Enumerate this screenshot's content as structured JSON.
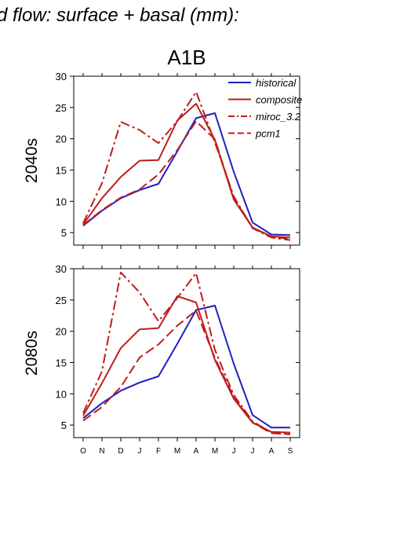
{
  "figure": {
    "title": "d flow: surface + basal (mm):",
    "scenario": "A1B"
  },
  "colors": {
    "historical": "#1f1fbf",
    "scenario": "#c01c1c"
  },
  "chart_data": [
    {
      "type": "line",
      "panel_label": "2040s",
      "categories": [
        "O",
        "N",
        "D",
        "J",
        "F",
        "M",
        "A",
        "M",
        "J",
        "J",
        "A",
        "S"
      ],
      "ylim": [
        3,
        30
      ],
      "yticks": [
        5,
        10,
        15,
        20,
        25,
        30
      ],
      "grid": false,
      "legend_placement": "top-right",
      "series": [
        {
          "name": "historical",
          "style": "solid",
          "color": "#1f1fbf",
          "values": [
            6.1,
            8.5,
            10.5,
            11.8,
            12.8,
            18.0,
            23.3,
            24.1,
            14.7,
            6.6,
            4.7,
            4.6
          ]
        },
        {
          "name": "composite",
          "style": "solid",
          "color": "#c01c1c",
          "values": [
            6.3,
            10.5,
            13.9,
            16.5,
            16.6,
            22.9,
            25.6,
            19.8,
            10.3,
            5.8,
            4.4,
            4.2
          ]
        },
        {
          "name": "miroc_3.2",
          "style": "dashdot",
          "color": "#c01c1c",
          "values": [
            6.5,
            12.9,
            22.7,
            21.4,
            19.3,
            22.8,
            27.5,
            19.4,
            10.8,
            5.7,
            4.2,
            3.8
          ]
        },
        {
          "name": "pcm1",
          "style": "dash",
          "color": "#c01c1c",
          "values": [
            6.2,
            8.6,
            10.6,
            11.9,
            14.3,
            18.2,
            22.8,
            19.9,
            10.5,
            5.8,
            4.3,
            4.0
          ]
        }
      ]
    },
    {
      "type": "line",
      "panel_label": "2080s",
      "categories": [
        "O",
        "N",
        "D",
        "J",
        "F",
        "M",
        "A",
        "M",
        "J",
        "J",
        "A",
        "S"
      ],
      "ylim": [
        3,
        30
      ],
      "yticks": [
        5,
        10,
        15,
        20,
        25,
        30
      ],
      "grid": false,
      "legend_placement": "none",
      "series": [
        {
          "name": "historical",
          "style": "solid",
          "color": "#1f1fbf",
          "values": [
            6.1,
            8.5,
            10.5,
            11.8,
            12.8,
            18.0,
            23.4,
            24.1,
            14.8,
            6.6,
            4.6,
            4.6
          ]
        },
        {
          "name": "composite",
          "style": "solid",
          "color": "#c01c1c",
          "values": [
            6.5,
            11.7,
            17.3,
            20.3,
            20.5,
            25.6,
            24.6,
            15.4,
            9.2,
            5.4,
            3.9,
            3.8
          ]
        },
        {
          "name": "miroc_3.2",
          "style": "dashdot",
          "color": "#c01c1c",
          "values": [
            6.9,
            13.6,
            29.4,
            26.2,
            21.6,
            25.3,
            29.3,
            17.0,
            9.8,
            5.6,
            3.8,
            3.6
          ]
        },
        {
          "name": "pcm1",
          "style": "dash",
          "color": "#c01c1c",
          "values": [
            5.7,
            7.9,
            11.1,
            15.8,
            17.9,
            20.9,
            23.3,
            15.7,
            9.5,
            5.4,
            3.7,
            3.5
          ]
        }
      ]
    }
  ]
}
